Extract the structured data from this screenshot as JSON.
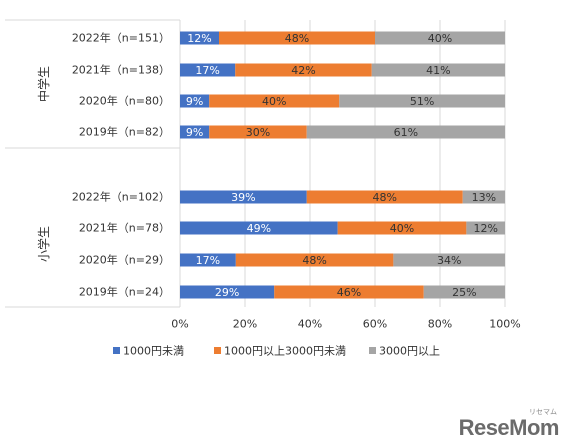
{
  "chart_data": {
    "type": "bar",
    "orientation": "horizontal",
    "stacked": "percent",
    "groups": [
      {
        "label": "中学生",
        "categories": [
          "2022年（n=151）",
          "2021年（n=138）",
          "2020年（n=80）",
          "2019年（n=82）"
        ],
        "series_values": [
          [
            12,
            48,
            40
          ],
          [
            17,
            42,
            41
          ],
          [
            9,
            40,
            51
          ],
          [
            9,
            30,
            61
          ]
        ],
        "data_labels": [
          [
            "12%",
            "48%",
            "40%"
          ],
          [
            "17%",
            "42%",
            "41%"
          ],
          [
            "9%",
            "40%",
            "51%"
          ],
          [
            "9%",
            "30%",
            "61%"
          ]
        ]
      },
      {
        "label": "小学生",
        "categories": [
          "2022年（n=102）",
          "2021年（n=78）",
          "2020年（n=29）",
          "2019年（n=24）"
        ],
        "series_values": [
          [
            39,
            48,
            13
          ],
          [
            49,
            40,
            12
          ],
          [
            17,
            48,
            34
          ],
          [
            29,
            46,
            25
          ]
        ],
        "data_labels": [
          [
            "39%",
            "48%",
            "13%"
          ],
          [
            "49%",
            "40%",
            "12%"
          ],
          [
            "17%",
            "48%",
            "34%"
          ],
          [
            "29%",
            "46%",
            "25%"
          ]
        ]
      }
    ],
    "series": [
      {
        "name": "1000円未満",
        "color": "#4472C4",
        "label_color": "#ffffff"
      },
      {
        "name": "1000円以上3000円未満",
        "color": "#ED7D31",
        "label_color": "#333333"
      },
      {
        "name": "3000円以上",
        "color": "#A5A5A5",
        "label_color": "#333333"
      }
    ],
    "x_ticks": [
      "0%",
      "20%",
      "40%",
      "60%",
      "80%",
      "100%"
    ],
    "xlim": [
      0,
      100
    ],
    "gridlines": true,
    "legend_position": "bottom"
  },
  "watermark": "ReseMom"
}
